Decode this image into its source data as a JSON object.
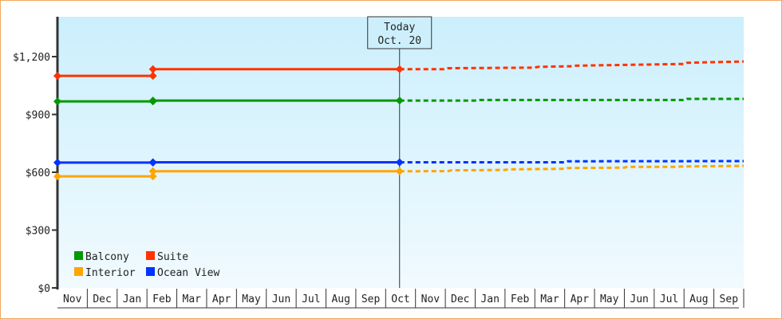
{
  "chart_data": {
    "type": "line",
    "title": "",
    "xlabel": "",
    "ylabel": "",
    "ylim": [
      0,
      1407
    ],
    "y_ticks": [
      "$0",
      "$300",
      "$600",
      "$900",
      "$1,200"
    ],
    "y_tick_values": [
      0,
      300,
      600,
      900,
      1200
    ],
    "x_unit": "months since start of first Nov",
    "x_categories": [
      "Nov",
      "Dec",
      "Jan",
      "Feb",
      "Mar",
      "Apr",
      "May",
      "Jun",
      "Jul",
      "Aug",
      "Sep",
      "Oct",
      "Nov",
      "Dec",
      "Jan",
      "Feb",
      "Mar",
      "Apr",
      "May",
      "Jun",
      "Jul",
      "Aug",
      "Sep"
    ],
    "today": {
      "line1": "Today",
      "line2": "Oct. 20",
      "x": 11.6
    },
    "legend_position": "bottom-left",
    "series": [
      {
        "name": "Balcony",
        "color": "#009900",
        "actual": [
          [
            0,
            968
          ],
          [
            3.2,
            968
          ],
          [
            3.2,
            972
          ],
          [
            11.6,
            972
          ]
        ],
        "forecast": [
          [
            11.6,
            972
          ],
          [
            14,
            972
          ],
          [
            14.1,
            975
          ],
          [
            21,
            975
          ],
          [
            21.1,
            981
          ],
          [
            23,
            981
          ]
        ],
        "markers": [
          [
            0,
            968
          ],
          [
            3.2,
            968
          ],
          [
            3.2,
            972
          ],
          [
            11.6,
            972
          ]
        ]
      },
      {
        "name": "Suite",
        "color": "#ff3300",
        "actual": [
          [
            0,
            1100
          ],
          [
            3.2,
            1100
          ],
          [
            3.2,
            1135
          ],
          [
            11.6,
            1135
          ]
        ],
        "forecast": [
          [
            11.6,
            1135
          ],
          [
            13,
            1135
          ],
          [
            13.1,
            1140
          ],
          [
            16,
            1143
          ],
          [
            16.1,
            1147
          ],
          [
            17.2,
            1150
          ],
          [
            17.3,
            1153
          ],
          [
            21,
            1162
          ],
          [
            21.1,
            1168
          ],
          [
            23,
            1175
          ]
        ],
        "markers": [
          [
            0,
            1100
          ],
          [
            3.2,
            1100
          ],
          [
            3.2,
            1135
          ],
          [
            11.6,
            1135
          ]
        ]
      },
      {
        "name": "Interior",
        "color": "#ffa500",
        "actual": [
          [
            0,
            579
          ],
          [
            3.2,
            579
          ],
          [
            3.2,
            605
          ],
          [
            11.6,
            605
          ]
        ],
        "forecast": [
          [
            11.6,
            605
          ],
          [
            13.1,
            606
          ],
          [
            13.2,
            610
          ],
          [
            15,
            612
          ],
          [
            15.1,
            615
          ],
          [
            17,
            618
          ],
          [
            17.1,
            622
          ],
          [
            19,
            624
          ],
          [
            19.1,
            628
          ],
          [
            20.8,
            628
          ],
          [
            20.9,
            630
          ],
          [
            23,
            633
          ]
        ],
        "markers": [
          [
            0,
            579
          ],
          [
            3.2,
            579
          ],
          [
            3.2,
            605
          ],
          [
            11.6,
            605
          ]
        ]
      },
      {
        "name": "Ocean View",
        "color": "#0033ff",
        "actual": [
          [
            0,
            650
          ],
          [
            3.2,
            650
          ],
          [
            3.2,
            652
          ],
          [
            11.6,
            652
          ]
        ],
        "forecast": [
          [
            11.6,
            652
          ],
          [
            17,
            652
          ],
          [
            17.1,
            657
          ],
          [
            23,
            658
          ]
        ],
        "markers": [
          [
            0,
            650
          ],
          [
            3.2,
            650
          ],
          [
            3.2,
            652
          ],
          [
            11.6,
            652
          ]
        ]
      }
    ]
  }
}
